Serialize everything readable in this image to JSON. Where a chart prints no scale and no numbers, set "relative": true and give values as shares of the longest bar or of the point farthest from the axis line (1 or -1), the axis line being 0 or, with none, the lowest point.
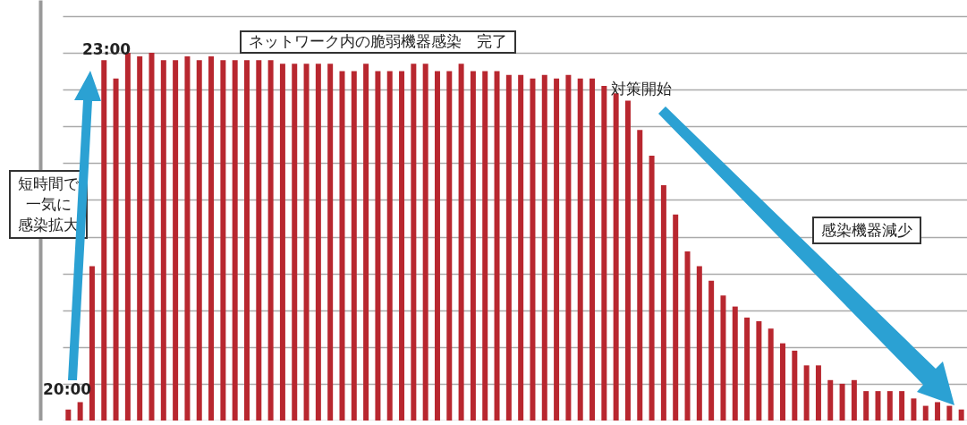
{
  "chart_data": {
    "type": "bar",
    "relative": true,
    "grid": "y",
    "color": "#b8272f",
    "categories": [
      null,
      null,
      null,
      null,
      null,
      null,
      null,
      null,
      null,
      null,
      null,
      null,
      null,
      null,
      null,
      null,
      null,
      null,
      null,
      null,
      null,
      null,
      null,
      null,
      null,
      null,
      null,
      null,
      null,
      null,
      null,
      null,
      null,
      null,
      null,
      null,
      null,
      null,
      null,
      null,
      null,
      null,
      null,
      null,
      null,
      null,
      null,
      null,
      null,
      null,
      null,
      null,
      null,
      null,
      null,
      null,
      null,
      null,
      null,
      null,
      null,
      null,
      null,
      null,
      null,
      null,
      null,
      null,
      null,
      null,
      null,
      null,
      null,
      null,
      null,
      null
    ],
    "values": [
      0.03,
      0.05,
      0.42,
      0.98,
      0.93,
      1,
      0.99,
      1,
      0.98,
      0.98,
      0.99,
      0.98,
      0.99,
      0.98,
      0.98,
      0.98,
      0.98,
      0.98,
      0.97,
      0.97,
      0.97,
      0.97,
      0.97,
      0.95,
      0.95,
      0.97,
      0.95,
      0.95,
      0.95,
      0.97,
      0.97,
      0.95,
      0.95,
      0.97,
      0.95,
      0.95,
      0.95,
      0.94,
      0.94,
      0.93,
      0.94,
      0.93,
      0.94,
      0.93,
      0.93,
      0.91,
      0.89,
      0.87,
      0.79,
      0.72,
      0.64,
      0.56,
      0.46,
      0.42,
      0.38,
      0.34,
      0.31,
      0.28,
      0.27,
      0.25,
      0.21,
      0.19,
      0.15,
      0.15,
      0.11,
      0.1,
      0.11,
      0.08,
      0.08,
      0.08,
      0.08,
      0.06,
      0.04,
      0.05,
      0.04,
      0.03
    ],
    "annotations": [
      "20:00",
      "23:00",
      "ネットワーク内の脆弱機器感染　完了",
      "対策開始",
      "短時間で一気に感染拡大",
      "感染機器減少"
    ]
  }
}
